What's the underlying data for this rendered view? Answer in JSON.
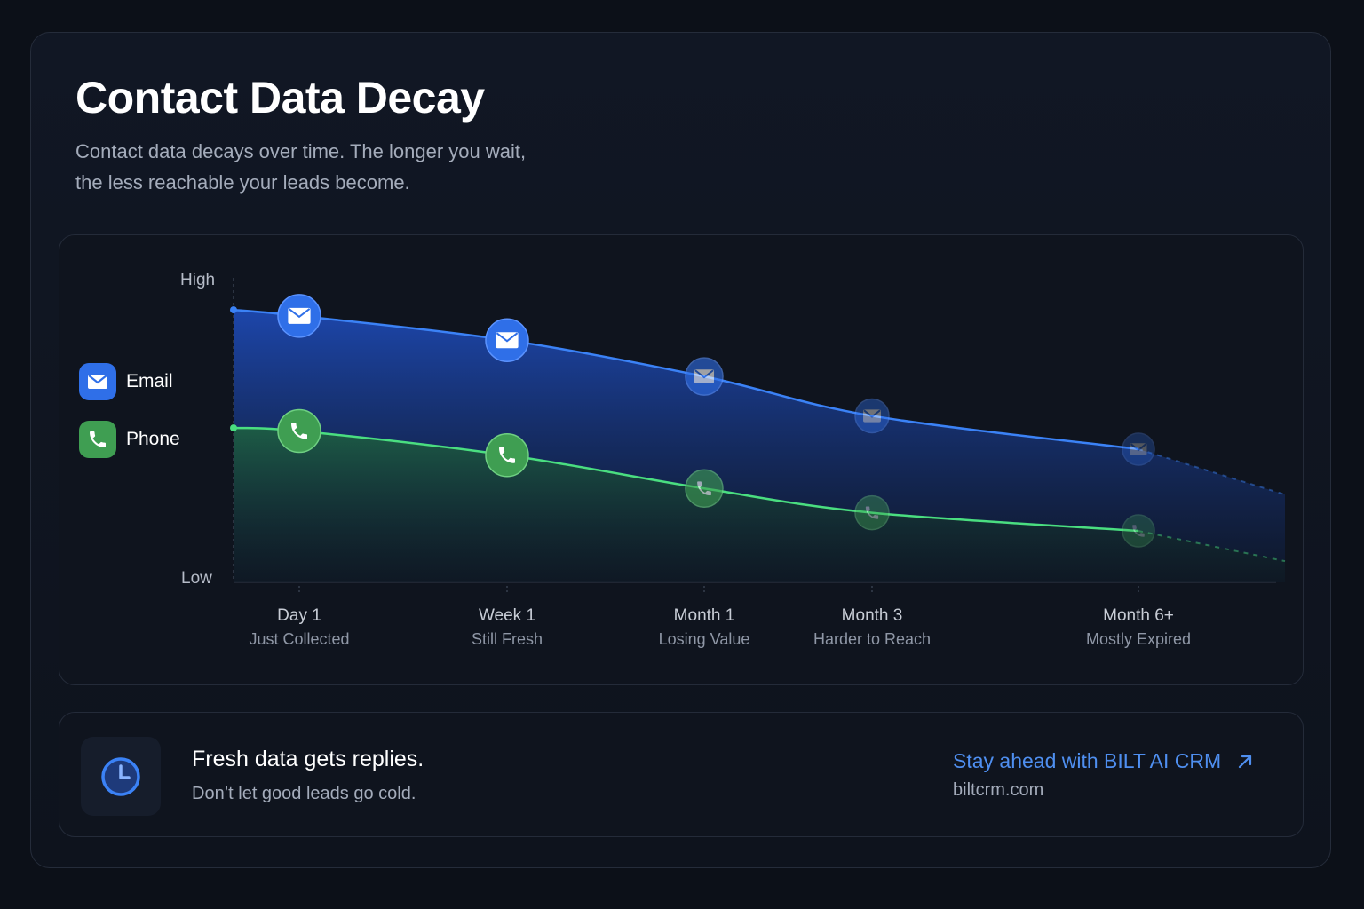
{
  "header": {
    "title": "Contact Data Decay",
    "subtitle_line1": "Contact data decays over time. The longer you wait,",
    "subtitle_line2": "the less reachable your leads become."
  },
  "chart_data": {
    "type": "area",
    "title": "Contact Data Decay",
    "y_axis": {
      "top_label": "High",
      "bottom_label": "Low",
      "ylim": [
        0,
        100
      ]
    },
    "categories": [
      "Day 1",
      "Week 1",
      "Month 1",
      "Month 3",
      "Month 6+"
    ],
    "category_sublabels": [
      "Just Collected",
      "Still Fresh",
      "Losing Value",
      "Harder to Reach",
      "Mostly Expired"
    ],
    "legend": {
      "placement": "left",
      "entries": [
        "Email",
        "Phone"
      ]
    },
    "series": [
      {
        "name": "Email",
        "icon": "envelope-icon",
        "color": "#3b82f6",
        "start": 90,
        "values": [
          88,
          80,
          68,
          55,
          44
        ],
        "end": 29
      },
      {
        "name": "Phone",
        "icon": "phone-icon",
        "color": "#4ade80",
        "start": 51,
        "values": [
          50,
          42,
          31,
          23,
          17
        ],
        "end": 7
      }
    ],
    "grid": false
  },
  "cta": {
    "headline": "Fresh data gets replies.",
    "subtext": "Don’t let good leads go cold.",
    "link_text": "Stay ahead with BILT AI CRM",
    "domain": "biltcrm.com",
    "icon": "clock-icon"
  },
  "colors": {
    "background": "#0c1018",
    "email": "#3b82f6",
    "phone": "#4ade80",
    "link": "#4f8ff0"
  }
}
